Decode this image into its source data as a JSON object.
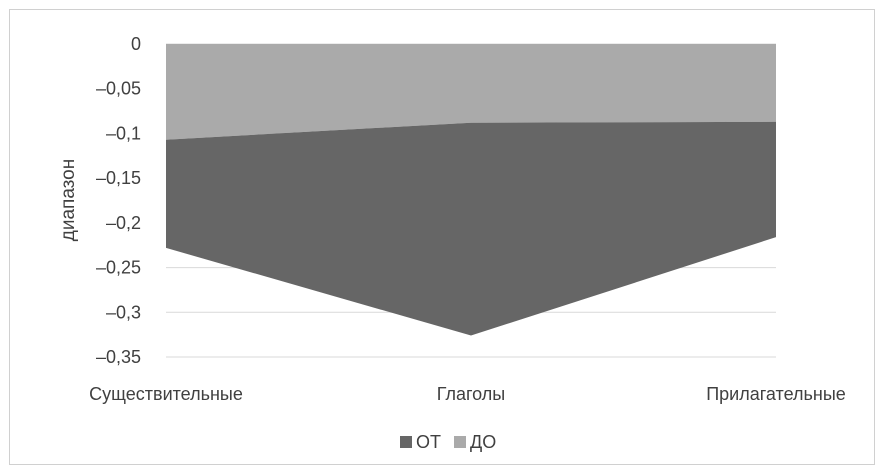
{
  "chart_data": {
    "type": "area",
    "categories": [
      "Существительные",
      "Глаголы",
      "Прилагательные"
    ],
    "series": [
      {
        "name": "ОТ",
        "values": [
          -0.228,
          -0.326,
          -0.216
        ],
        "color": "#666666"
      },
      {
        "name": "ДО",
        "values": [
          -0.107,
          -0.088,
          -0.087
        ],
        "color": "#aaaaaa"
      }
    ],
    "ylabel": "диапазон",
    "xlabel": "",
    "ylim": [
      -0.35,
      0
    ],
    "yticks": [
      0,
      -0.05,
      -0.1,
      -0.15,
      -0.2,
      -0.25,
      -0.3,
      -0.35
    ],
    "ytick_labels": [
      "0",
      "–0,05",
      "–0,1",
      "–0,15",
      "–0,2",
      "–0,25",
      "–0,3",
      "–0,35"
    ],
    "grid": true,
    "legend_position": "bottom"
  }
}
